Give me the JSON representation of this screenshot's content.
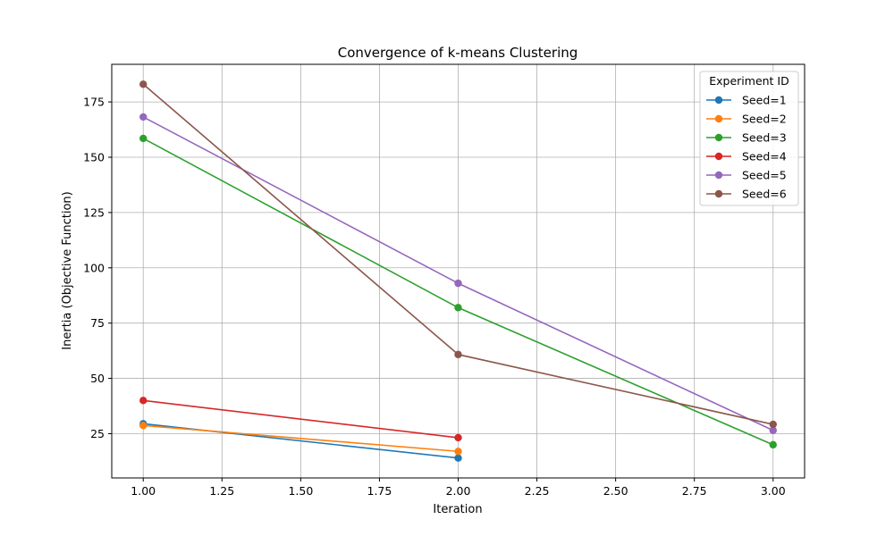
{
  "chart_data": {
    "type": "line",
    "title": "Convergence of k-means Clustering",
    "xlabel": "Iteration",
    "ylabel": "Inertia (Objective Function)",
    "xlim": [
      0.9,
      3.1
    ],
    "ylim": [
      5,
      192
    ],
    "xticks": [
      1.0,
      1.25,
      1.5,
      1.75,
      2.0,
      2.25,
      2.5,
      2.75,
      3.0
    ],
    "xtick_labels": [
      "1.00",
      "1.25",
      "1.50",
      "1.75",
      "2.00",
      "2.25",
      "2.50",
      "2.75",
      "3.00"
    ],
    "yticks": [
      25,
      50,
      75,
      100,
      125,
      150,
      175
    ],
    "ytick_labels": [
      "25",
      "50",
      "75",
      "100",
      "125",
      "150",
      "175"
    ],
    "grid": true,
    "legend_title": "Experiment ID",
    "legend_position": "top-right",
    "series": [
      {
        "name": "Seed=1",
        "color": "#1f77b4",
        "x": [
          1,
          2
        ],
        "y": [
          29.5,
          14.0
        ]
      },
      {
        "name": "Seed=2",
        "color": "#ff7f0e",
        "x": [
          1,
          2
        ],
        "y": [
          28.7,
          17.0
        ]
      },
      {
        "name": "Seed=3",
        "color": "#2ca02c",
        "x": [
          1,
          2,
          3
        ],
        "y": [
          158.5,
          82.0,
          20.0
        ]
      },
      {
        "name": "Seed=4",
        "color": "#d62728",
        "x": [
          1,
          2
        ],
        "y": [
          40.0,
          23.2
        ]
      },
      {
        "name": "Seed=5",
        "color": "#9467bd",
        "x": [
          1,
          2,
          3
        ],
        "y": [
          168.2,
          93.0,
          26.5
        ]
      },
      {
        "name": "Seed=6",
        "color": "#8c564b",
        "x": [
          1,
          2,
          3
        ],
        "y": [
          183.0,
          60.8,
          29.2
        ]
      }
    ]
  }
}
